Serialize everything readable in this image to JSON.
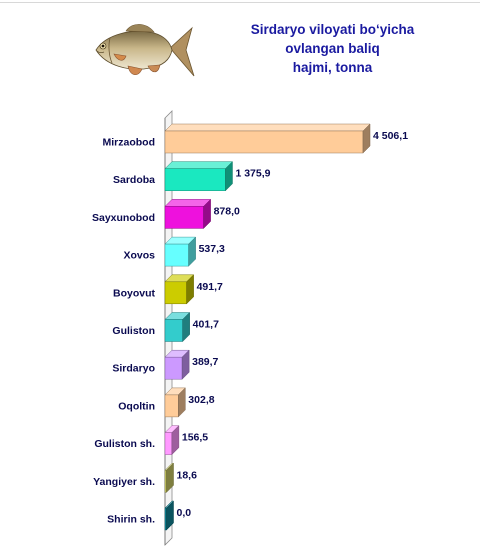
{
  "chart_data": {
    "type": "bar",
    "orientation": "horizontal",
    "title": [
      "Sirdaryo viloyati bo‘yicha",
      "ovlangan baliq",
      "hajmi, tonna"
    ],
    "categories": [
      "Mirzaobod",
      "Sardoba",
      "Sayxunobod",
      "Xovos",
      "Boyovut",
      "Guliston",
      "Sirdaryo",
      "Oqoltin",
      "Guliston sh.",
      "Yangiyer sh.",
      "Shirin sh."
    ],
    "values": [
      4506.1,
      1375.9,
      878.0,
      537.3,
      491.7,
      401.7,
      389.7,
      302.8,
      156.5,
      18.6,
      0.0
    ],
    "value_labels": [
      "4 506,1",
      "1 375,9",
      "878,0",
      "537,3",
      "491,7",
      "401,7",
      "389,7",
      "302,8",
      "156,5",
      "18,6",
      "0,0"
    ],
    "colors": [
      "#ffcc99",
      "#1ae8c0",
      "#ee11dd",
      "#66ffff",
      "#cccc00",
      "#33cccc",
      "#cc99ff",
      "#ffcc99",
      "#ff99ff",
      "#cccc66",
      "#118899"
    ],
    "xlim": [
      0,
      4506.1
    ],
    "grid": false,
    "legend": "none"
  },
  "decorations": {
    "image": "fish-illustration"
  }
}
